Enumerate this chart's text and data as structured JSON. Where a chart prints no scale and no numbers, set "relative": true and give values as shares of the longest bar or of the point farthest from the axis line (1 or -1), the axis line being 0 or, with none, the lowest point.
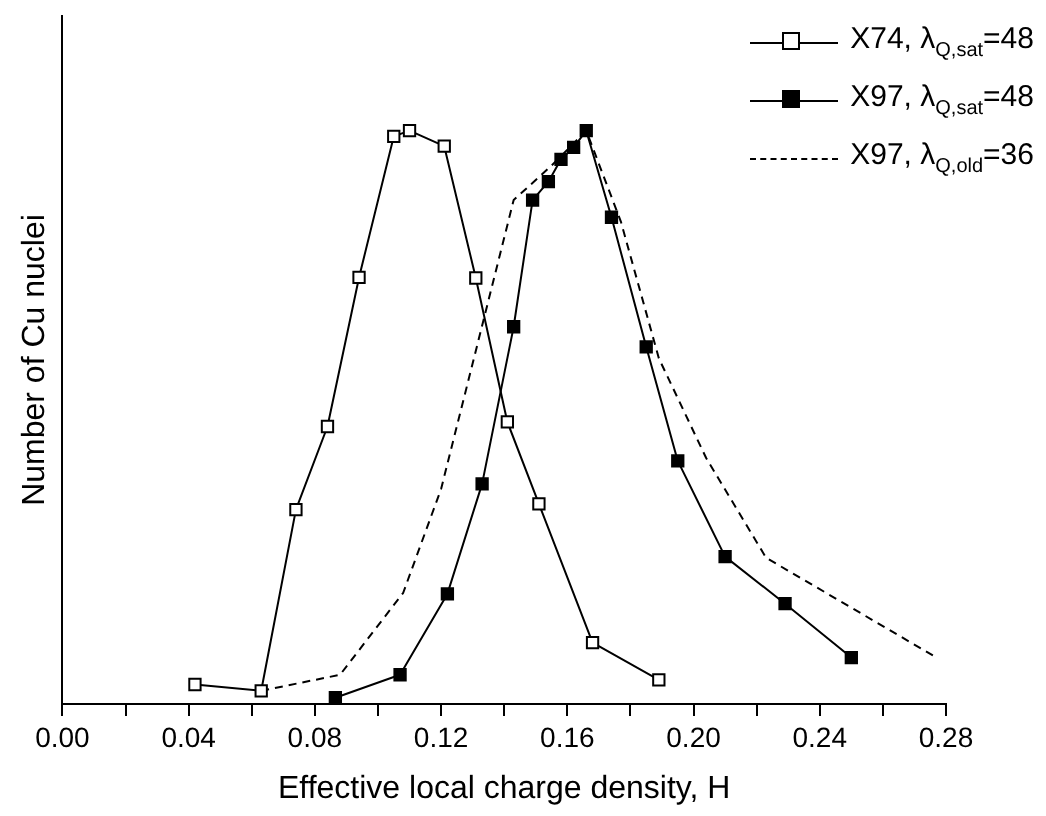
{
  "chart_data": {
    "type": "line",
    "relative": true,
    "xlabel": "Effective local charge density, H",
    "ylabel": "Number of Cu nuclei",
    "xlim": [
      0,
      0.28
    ],
    "xticks": [
      {
        "value": 0,
        "label": "0.00"
      },
      {
        "value": 0.02,
        "label": null
      },
      {
        "value": 0.04,
        "label": "0.04"
      },
      {
        "value": 0.06,
        "label": null
      },
      {
        "value": 0.08,
        "label": "0.08"
      },
      {
        "value": 0.1,
        "label": null
      },
      {
        "value": 0.12,
        "label": "0.12"
      },
      {
        "value": 0.14,
        "label": null
      },
      {
        "value": 0.16,
        "label": "0.16"
      },
      {
        "value": 0.18,
        "label": null
      },
      {
        "value": 0.2,
        "label": "0.20"
      },
      {
        "value": 0.22,
        "label": null
      },
      {
        "value": 0.24,
        "label": "0.24"
      },
      {
        "value": 0.26,
        "label": null
      },
      {
        "value": 0.28,
        "label": "0.28"
      }
    ],
    "tick_labels": "x",
    "grid": false,
    "legend": "top right",
    "series": [
      {
        "name": "X74, λ$_{Q,sat}$=48",
        "color": "#000000",
        "marker": "square",
        "line_style": "solid",
        "colors": [
          "#ffffff",
          "#ffffff",
          "#ffffff",
          "#ffffff",
          "#ffffff",
          "#ffffff",
          "#ffffff",
          "#ffffff",
          "#ffffff",
          "#ffffff",
          "#ffffff",
          "#ffffff",
          "#ffffff"
        ],
        "x": [
          0.042,
          0.063,
          0.074,
          0.084,
          0.094,
          0.105,
          0.11,
          0.121,
          0.131,
          0.141,
          0.151,
          0.168,
          0.189
        ],
        "values": [
          0.034,
          0.023,
          0.339,
          0.484,
          0.744,
          0.99,
          1,
          0.973,
          0.743,
          0.492,
          0.349,
          0.107,
          0.042
        ]
      },
      {
        "name": "X97, λ$_{Q,sat}$=48",
        "color": "#000000",
        "marker": "square",
        "line_style": "solid",
        "x": [
          0.0865,
          0.107,
          0.122,
          0.133,
          0.143,
          0.149,
          0.154,
          0.158,
          0.162,
          0.166,
          0.174,
          0.185,
          0.195,
          0.21,
          0.229,
          0.25
        ],
        "values": [
          0.011,
          0.051,
          0.192,
          0.384,
          0.658,
          0.879,
          0.911,
          0.95,
          0.971,
          1,
          0.849,
          0.623,
          0.424,
          0.257,
          0.175,
          0.081
        ]
      },
      {
        "name": "X97, λ$_{Q,old}$=36",
        "color": "#000000",
        "marker": "none",
        "line_style": "dashed",
        "x": [
          0.063,
          0.088,
          0.108,
          0.12,
          0.143,
          0.155,
          0.166,
          0.177,
          0.189,
          0.204,
          0.223,
          0.277
        ],
        "values": [
          0.023,
          0.051,
          0.194,
          0.375,
          0.879,
          0.939,
          1,
          0.841,
          0.603,
          0.429,
          0.255,
          0.081
        ]
      }
    ]
  }
}
